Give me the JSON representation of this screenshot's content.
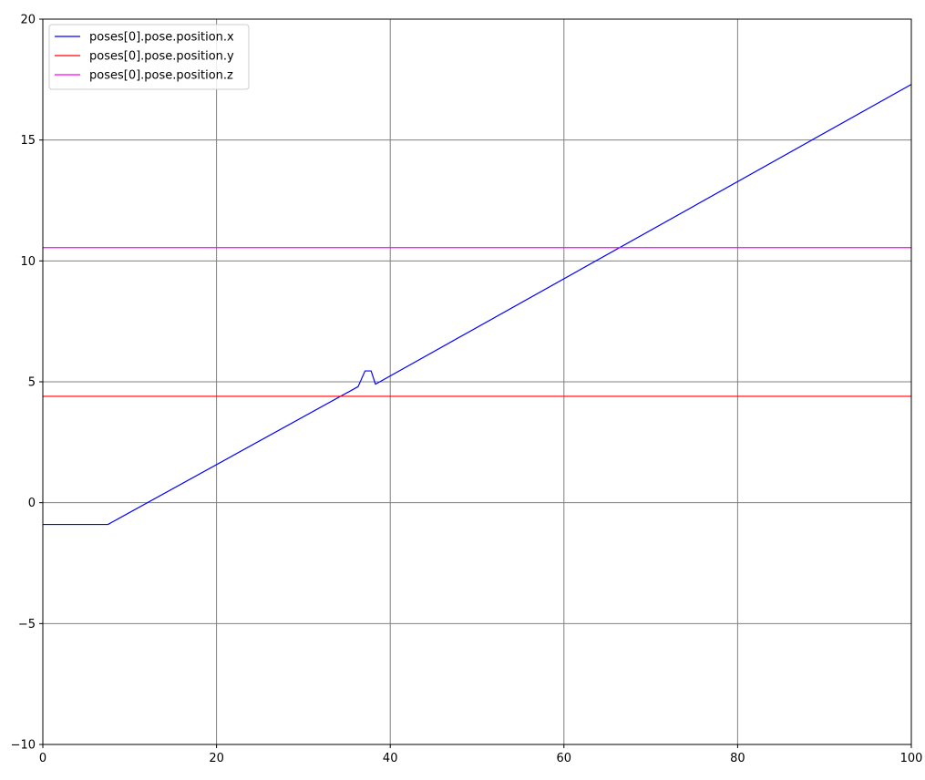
{
  "chart_data": {
    "type": "line",
    "title": "",
    "xlabel": "",
    "ylabel": "",
    "xlim": [
      0,
      100
    ],
    "ylim": [
      -10,
      20
    ],
    "xticks": [
      0,
      20,
      40,
      60,
      80,
      100
    ],
    "yticks": [
      -10,
      -5,
      0,
      5,
      10,
      15,
      20
    ],
    "grid": true,
    "grid_color": "#808080",
    "legend_position": "top-left",
    "series": [
      {
        "name": "poses[0].pose.position.x",
        "color": "#0000ff",
        "x": [
          0,
          7.5,
          8,
          36.3,
          37.1,
          37.8,
          38.3,
          100
        ],
        "y": [
          -0.9,
          -0.9,
          -0.8,
          4.8,
          5.45,
          5.45,
          4.9,
          17.3
        ]
      },
      {
        "name": "poses[0].pose.position.y",
        "color": "#ff0000",
        "x": [
          0,
          100
        ],
        "y": [
          4.4,
          4.4
        ]
      },
      {
        "name": "poses[0].pose.position.z",
        "color": "#ff00ff",
        "x": [
          0,
          100
        ],
        "y": [
          10.55,
          10.55
        ]
      }
    ]
  }
}
